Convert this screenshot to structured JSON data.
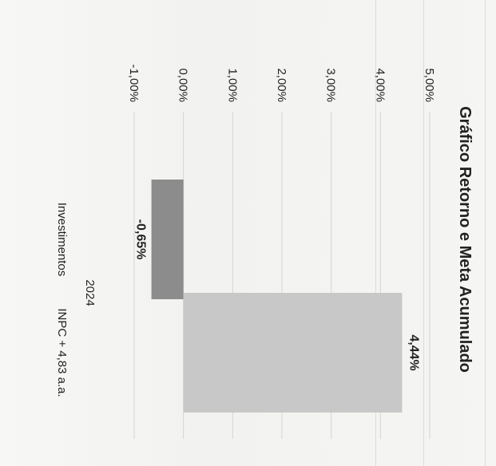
{
  "chart_data": {
    "type": "bar",
    "title": "Gráfico Retorno e Meta Acumulado",
    "categories": [
      "2024"
    ],
    "series": [
      {
        "name": "Investimentos",
        "values": [
          -0.65
        ],
        "label": "-0,65%",
        "color": "#8c8c8c"
      },
      {
        "name": "INPC + 4,83 a.a.",
        "values": [
          4.44
        ],
        "label": "4,44%",
        "color": "#c8c8c8"
      }
    ],
    "ylim": [
      -1,
      5
    ],
    "yticks": [
      {
        "value": 5,
        "label": "5,00%"
      },
      {
        "value": 4,
        "label": "4,00%"
      },
      {
        "value": 3,
        "label": "3,00%"
      },
      {
        "value": 2,
        "label": "2,00%"
      },
      {
        "value": 1,
        "label": "1,00%"
      },
      {
        "value": 0,
        "label": "0,00%"
      },
      {
        "value": -1,
        "label": "-1,00%"
      }
    ],
    "grid": true
  }
}
